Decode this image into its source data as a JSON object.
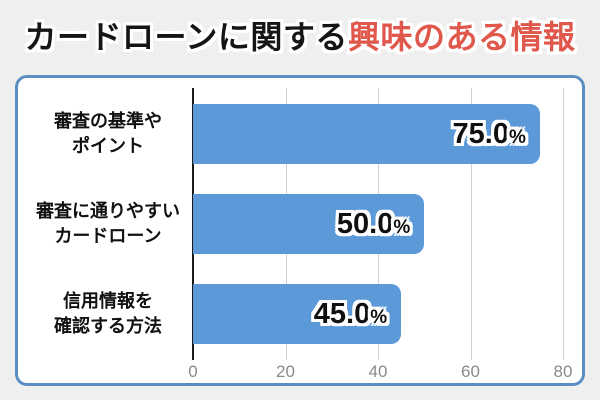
{
  "title": {
    "black_part": "カードローンに関する",
    "red_part": "興味のある情報",
    "full": "カードローンに関する興味のある情報"
  },
  "colors": {
    "bg": "#efefef",
    "card_bg": "#ffffff",
    "border": "#5b8fc4",
    "bar": "#5b99d9",
    "title_red": "#df584b",
    "axis": "#1a1a1a",
    "grid": "#d0d0d0",
    "tick": "#8a8a8a"
  },
  "chart_data": {
    "type": "bar",
    "orientation": "horizontal",
    "title": "カードローンに関する興味のある情報",
    "categories": [
      "審査の基準や\nポイント",
      "審査に通りやすい\nカードローン",
      "信用情報を\n確認する方法"
    ],
    "values": [
      75.0,
      50.0,
      45.0
    ],
    "value_labels": [
      {
        "value": "75.0",
        "unit": "%"
      },
      {
        "value": "50.0",
        "unit": "%"
      },
      {
        "value": "45.0",
        "unit": "%"
      }
    ],
    "xlabel": "",
    "ylabel": "",
    "xlim": [
      0,
      80
    ],
    "xticks": [
      0,
      20,
      40,
      60,
      80
    ],
    "grid": true,
    "legend": false
  }
}
